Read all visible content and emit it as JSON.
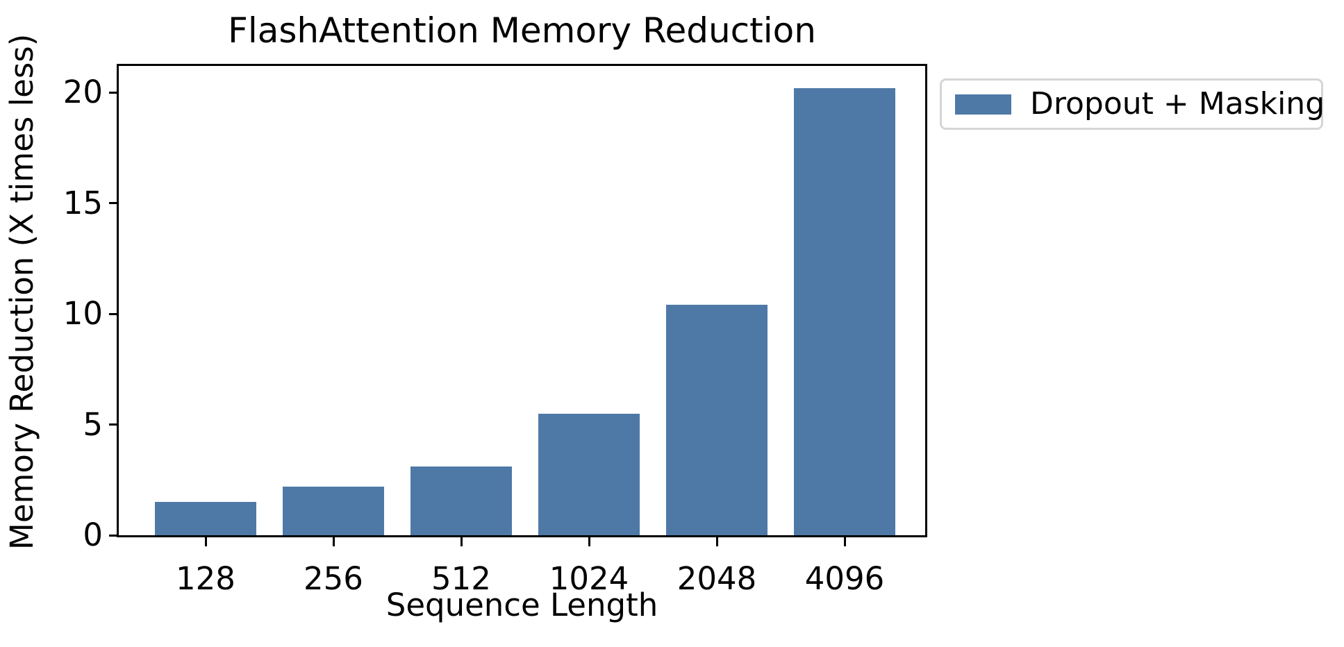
{
  "title": "FlashAttention Memory Reduction",
  "chart_data": {
    "type": "bar",
    "title": "FlashAttention Memory Reduction",
    "categories": [
      "128",
      "256",
      "512",
      "1024",
      "2048",
      "4096"
    ],
    "values": [
      1.5,
      2.2,
      3.1,
      5.5,
      10.4,
      20.2
    ],
    "series": [
      {
        "name": "Dropout + Masking",
        "values": [
          1.5,
          2.2,
          3.1,
          5.5,
          10.4,
          20.2
        ]
      }
    ],
    "xlabel": "Sequence Length",
    "ylabel": "Memory Reduction (X times less)",
    "yticks": [
      0,
      5,
      10,
      15,
      20
    ],
    "ylim": [
      0,
      21.2
    ],
    "grid": false,
    "legend_entries": [
      "Dropout + Masking"
    ],
    "legend_position": "outside-upper-right",
    "bar_color": "#4E79A7"
  },
  "legend": {
    "label": "Dropout + Masking",
    "swatch_color": "#4E79A7"
  },
  "colors": {
    "bar": "#4E79A7",
    "axis": "#000000",
    "legend_border": "#d5d5d5",
    "background": "#ffffff"
  }
}
